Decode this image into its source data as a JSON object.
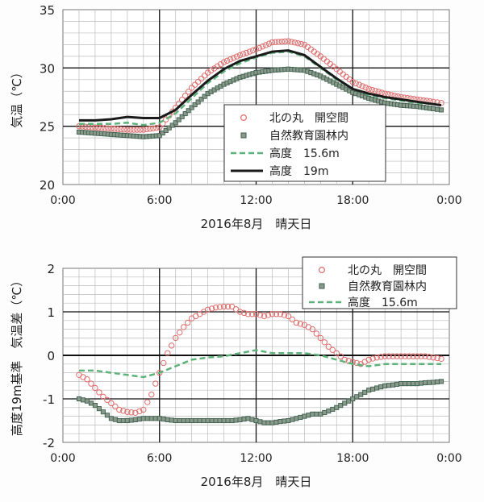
{
  "chart_data": [
    {
      "type": "line",
      "ylabel": "気温（℃）",
      "xlabel": "2016年8月　晴天日",
      "xlim": [
        0,
        24
      ],
      "ylim": [
        20,
        35
      ],
      "x_ticks": [
        "0:00",
        "6:00",
        "12:00",
        "18:00",
        "0:00"
      ],
      "y_ticks": [
        "20",
        "25",
        "30",
        "35"
      ],
      "grid": true,
      "legend": "center-right",
      "series": [
        {
          "name": "北の丸　開空間",
          "style": "circle",
          "color": "#e06d6d",
          "x": [
            1,
            2,
            3,
            4,
            5,
            6,
            7,
            8,
            9,
            10,
            11,
            12,
            13,
            14,
            15,
            16,
            17,
            18,
            19,
            20,
            21,
            22,
            23,
            23.5
          ],
          "values": [
            25.0,
            24.9,
            24.8,
            24.7,
            24.7,
            24.9,
            26.6,
            28.3,
            29.6,
            30.5,
            31.1,
            31.6,
            32.2,
            32.3,
            32.0,
            31.0,
            29.9,
            28.8,
            28.2,
            27.8,
            27.5,
            27.3,
            27.1,
            27.0
          ]
        },
        {
          "name": "自然教育園林内",
          "style": "square",
          "color": "#3f5f4f",
          "x": [
            1,
            2,
            3,
            4,
            5,
            6,
            7,
            8,
            9,
            10,
            11,
            12,
            13,
            14,
            15,
            16,
            17,
            18,
            19,
            20,
            21,
            22,
            23,
            23.5
          ],
          "values": [
            24.5,
            24.4,
            24.3,
            24.2,
            24.1,
            24.2,
            25.3,
            26.6,
            27.8,
            28.6,
            29.2,
            29.6,
            29.8,
            29.9,
            29.8,
            29.3,
            28.6,
            27.9,
            27.4,
            27.0,
            26.8,
            26.7,
            26.5,
            26.4
          ]
        },
        {
          "name": "高度　15.6m",
          "style": "dashed",
          "color": "#5eb37a",
          "x": [
            1,
            2,
            3,
            4,
            5,
            6,
            7,
            8,
            9,
            10,
            11,
            12,
            13,
            14,
            15,
            16,
            17,
            18,
            19,
            20,
            21,
            22,
            23,
            23.5
          ],
          "values": [
            25.2,
            25.2,
            25.2,
            25.3,
            25.1,
            25.3,
            26.1,
            27.4,
            28.7,
            29.7,
            30.4,
            30.9,
            31.3,
            31.4,
            31.0,
            30.0,
            29.0,
            28.2,
            27.7,
            27.4,
            27.2,
            27.0,
            26.9,
            26.8
          ]
        },
        {
          "name": "高度　19m",
          "style": "solid",
          "color": "#1a1a1a",
          "x": [
            1,
            2,
            3,
            4,
            5,
            6,
            7,
            8,
            9,
            10,
            11,
            12,
            13,
            14,
            15,
            16,
            17,
            18,
            19,
            20,
            21,
            22,
            23,
            23.5
          ],
          "values": [
            25.5,
            25.5,
            25.6,
            25.8,
            25.7,
            25.7,
            26.4,
            27.7,
            28.9,
            29.9,
            30.6,
            31.0,
            31.4,
            31.5,
            31.1,
            30.1,
            29.1,
            28.2,
            27.8,
            27.5,
            27.3,
            27.1,
            26.9,
            26.8
          ]
        }
      ]
    },
    {
      "type": "line",
      "ylabel": "高度19m基準　気温差（℃）",
      "xlabel": "2016年8月　晴天日",
      "xlim": [
        0,
        24
      ],
      "ylim": [
        -2,
        2
      ],
      "x_ticks": [
        "0:00",
        "6:00",
        "12:00",
        "18:00",
        "0:00"
      ],
      "y_ticks": [
        "-2",
        "-1",
        "0",
        "1",
        "2"
      ],
      "grid": true,
      "legend": "top-right",
      "series": [
        {
          "name": "北の丸　開空間",
          "style": "circle",
          "color": "#e06d6d",
          "x": [
            1,
            1.5,
            2,
            2.5,
            3,
            3.5,
            4,
            4.5,
            5,
            5.5,
            6,
            6.5,
            7,
            7.5,
            8,
            8.5,
            9,
            9.5,
            10,
            10.5,
            11,
            11.5,
            12,
            12.5,
            13,
            13.5,
            14,
            14.5,
            15,
            15.5,
            16,
            16.5,
            17,
            17.5,
            18,
            18.5,
            19,
            19.5,
            20,
            20.5,
            21,
            21.5,
            22,
            22.5,
            23,
            23.5
          ],
          "values": [
            -0.45,
            -0.55,
            -0.75,
            -0.95,
            -1.1,
            -1.25,
            -1.3,
            -1.32,
            -1.25,
            -0.9,
            -0.4,
            0.05,
            0.4,
            0.65,
            0.85,
            0.95,
            1.05,
            1.1,
            1.12,
            1.12,
            1.0,
            0.95,
            0.95,
            0.9,
            0.95,
            0.95,
            0.9,
            0.75,
            0.7,
            0.6,
            0.4,
            0.2,
            0.05,
            -0.1,
            -0.15,
            -0.2,
            -0.1,
            -0.05,
            -0.02,
            -0.02,
            -0.02,
            -0.02,
            -0.02,
            -0.02,
            -0.05,
            -0.08
          ]
        },
        {
          "name": "自然教育園林内",
          "style": "square",
          "color": "#3f5f4f",
          "x": [
            1,
            1.5,
            2,
            2.5,
            3,
            3.5,
            4,
            4.5,
            5,
            5.5,
            6,
            6.5,
            7,
            7.5,
            8,
            8.5,
            9,
            9.5,
            10,
            10.5,
            11,
            11.5,
            12,
            12.5,
            13,
            13.5,
            14,
            14.5,
            15,
            15.5,
            16,
            16.5,
            17,
            17.5,
            18,
            18.5,
            19,
            19.5,
            20,
            20.5,
            21,
            21.5,
            22,
            22.5,
            23,
            23.5
          ],
          "values": [
            -1.0,
            -1.05,
            -1.15,
            -1.3,
            -1.45,
            -1.5,
            -1.5,
            -1.48,
            -1.45,
            -1.45,
            -1.45,
            -1.48,
            -1.5,
            -1.5,
            -1.5,
            -1.5,
            -1.5,
            -1.5,
            -1.5,
            -1.5,
            -1.48,
            -1.45,
            -1.5,
            -1.55,
            -1.55,
            -1.52,
            -1.5,
            -1.45,
            -1.4,
            -1.35,
            -1.35,
            -1.28,
            -1.2,
            -1.1,
            -1.0,
            -0.9,
            -0.8,
            -0.75,
            -0.7,
            -0.68,
            -0.65,
            -0.65,
            -0.65,
            -0.63,
            -0.62,
            -0.6
          ]
        },
        {
          "name": "高度　15.6m",
          "style": "dashed",
          "color": "#5eb37a",
          "x": [
            1,
            2,
            3,
            4,
            5,
            6,
            7,
            8,
            9,
            10,
            11,
            12,
            13,
            14,
            15,
            16,
            17,
            18,
            19,
            20,
            21,
            22,
            23,
            23.5
          ],
          "values": [
            -0.35,
            -0.35,
            -0.4,
            -0.45,
            -0.5,
            -0.4,
            -0.25,
            -0.1,
            -0.05,
            -0.02,
            0.05,
            0.12,
            0.05,
            0.05,
            0.05,
            0.0,
            -0.1,
            -0.2,
            -0.25,
            -0.2,
            -0.2,
            -0.2,
            -0.2,
            -0.2
          ]
        }
      ]
    }
  ]
}
